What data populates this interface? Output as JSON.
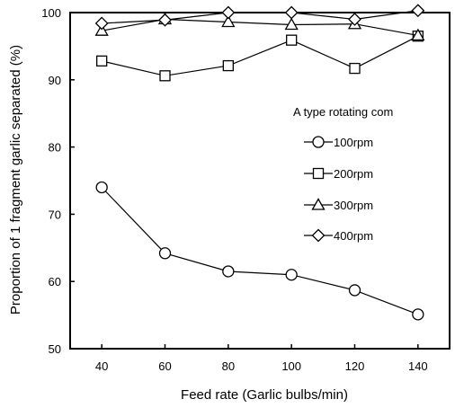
{
  "chart_data": {
    "type": "line",
    "title": "",
    "xlabel": "Feed rate (Garlic bulbs/min)",
    "ylabel": "Proportion of 1 fragment garlic separated (%)",
    "x": [
      40,
      60,
      80,
      100,
      120,
      140
    ],
    "xlim": [
      30,
      150
    ],
    "ylim": [
      50,
      100
    ],
    "xticks": [
      "40",
      "60",
      "80",
      "100",
      "120",
      "140"
    ],
    "yticks": [
      "50",
      "60",
      "70",
      "80",
      "90",
      "100"
    ],
    "grid": false,
    "legend": {
      "title": "A type rotating com",
      "placement": "right"
    },
    "series": [
      {
        "name": "100rpm",
        "marker": "circle",
        "values": [
          74.0,
          64.2,
          61.5,
          61.0,
          58.7,
          55.1
        ]
      },
      {
        "name": "200rpm",
        "marker": "square",
        "values": [
          92.8,
          90.6,
          92.1,
          95.9,
          91.7,
          96.5
        ]
      },
      {
        "name": "300rpm",
        "marker": "triangle",
        "values": [
          97.3,
          99.0,
          98.6,
          98.2,
          98.3,
          96.6
        ]
      },
      {
        "name": "400rpm",
        "marker": "diamond",
        "values": [
          98.4,
          98.9,
          100.0,
          100.0,
          99.0,
          100.3
        ]
      }
    ]
  }
}
